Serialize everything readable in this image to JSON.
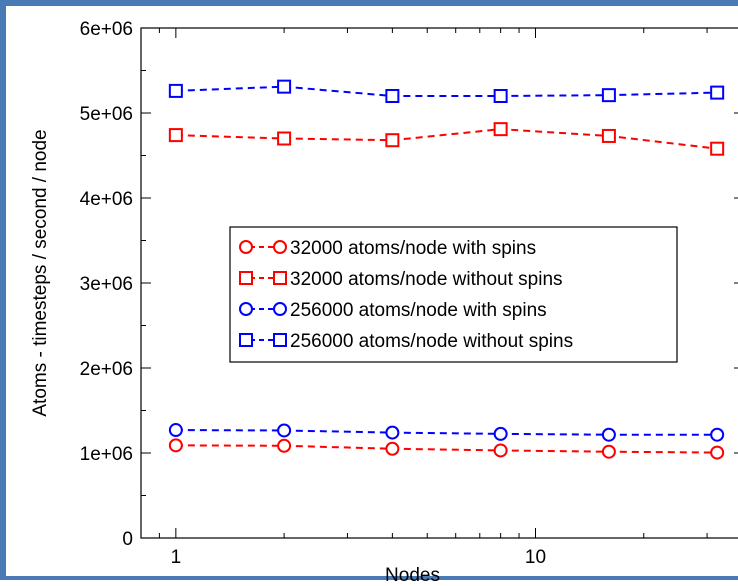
{
  "chart_data": {
    "type": "line",
    "xlabel": "Nodes",
    "ylabel": "Atoms - timesteps / second / node",
    "xscale": "log",
    "xlim": [
      0.8,
      38
    ],
    "ylim": [
      0,
      6000000
    ],
    "y_ticks": [
      {
        "value": 0,
        "label": "0"
      },
      {
        "value": 1000000,
        "label": "1e+06"
      },
      {
        "value": 2000000,
        "label": "2e+06"
      },
      {
        "value": 3000000,
        "label": "3e+06"
      },
      {
        "value": 4000000,
        "label": "4e+06"
      },
      {
        "value": 5000000,
        "label": "5e+06"
      },
      {
        "value": 6000000,
        "label": "6e+06"
      }
    ],
    "x_ticks": [
      {
        "value": 1,
        "label": "1"
      },
      {
        "value": 10,
        "label": "10"
      }
    ],
    "x": [
      1,
      2,
      4,
      8,
      16,
      32
    ],
    "legend_position": "center",
    "series": [
      {
        "name": "32000 atoms/node with spins",
        "color": "#ff0000",
        "marker": "circle",
        "values": [
          1090000,
          1085000,
          1050000,
          1030000,
          1015000,
          1005000
        ]
      },
      {
        "name": "32000 atoms/node without spins",
        "color": "#ff0000",
        "marker": "square",
        "values": [
          4740000,
          4700000,
          4680000,
          4810000,
          4730000,
          4580000
        ]
      },
      {
        "name": "256000 atoms/node with spins",
        "color": "#0000ff",
        "marker": "circle",
        "values": [
          1270000,
          1265000,
          1240000,
          1225000,
          1215000,
          1215000
        ]
      },
      {
        "name": "256000 atoms/node without spins",
        "color": "#0000ff",
        "marker": "square",
        "values": [
          5260000,
          5310000,
          5200000,
          5200000,
          5210000,
          5240000
        ]
      }
    ]
  }
}
